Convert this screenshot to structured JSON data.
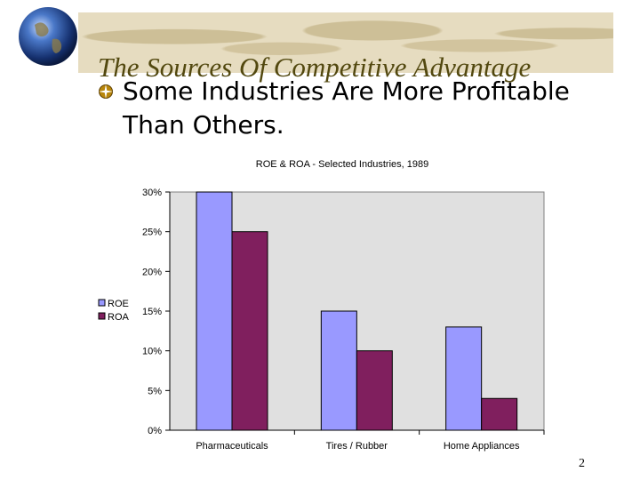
{
  "slide": {
    "title": "The Sources Of Competitive Advantage",
    "bullet": "Some Industries Are More Profitable Than Others.",
    "page_number": "2"
  },
  "colors": {
    "plot_background": "#e0e0e0",
    "roe": "#9999ff",
    "roa": "#801f5e",
    "title": "#52480f"
  },
  "icons": [
    "globe-icon",
    "compass-bullet-icon"
  ],
  "chart_data": {
    "type": "bar",
    "title": "ROE & ROA - Selected Industries, 1989",
    "categories": [
      "Pharmaceuticals",
      "Tires / Rubber",
      "Home Appliances"
    ],
    "series": [
      {
        "name": "ROE",
        "values": [
          30,
          15,
          13
        ]
      },
      {
        "name": "ROA",
        "values": [
          25,
          10,
          4
        ]
      }
    ],
    "y_ticks": [
      "0%",
      "5%",
      "10%",
      "15%",
      "20%",
      "25%",
      "30%"
    ],
    "ylim": [
      0,
      30
    ],
    "xlabel": "",
    "ylabel": "",
    "grid": false,
    "legend_position": "left"
  }
}
